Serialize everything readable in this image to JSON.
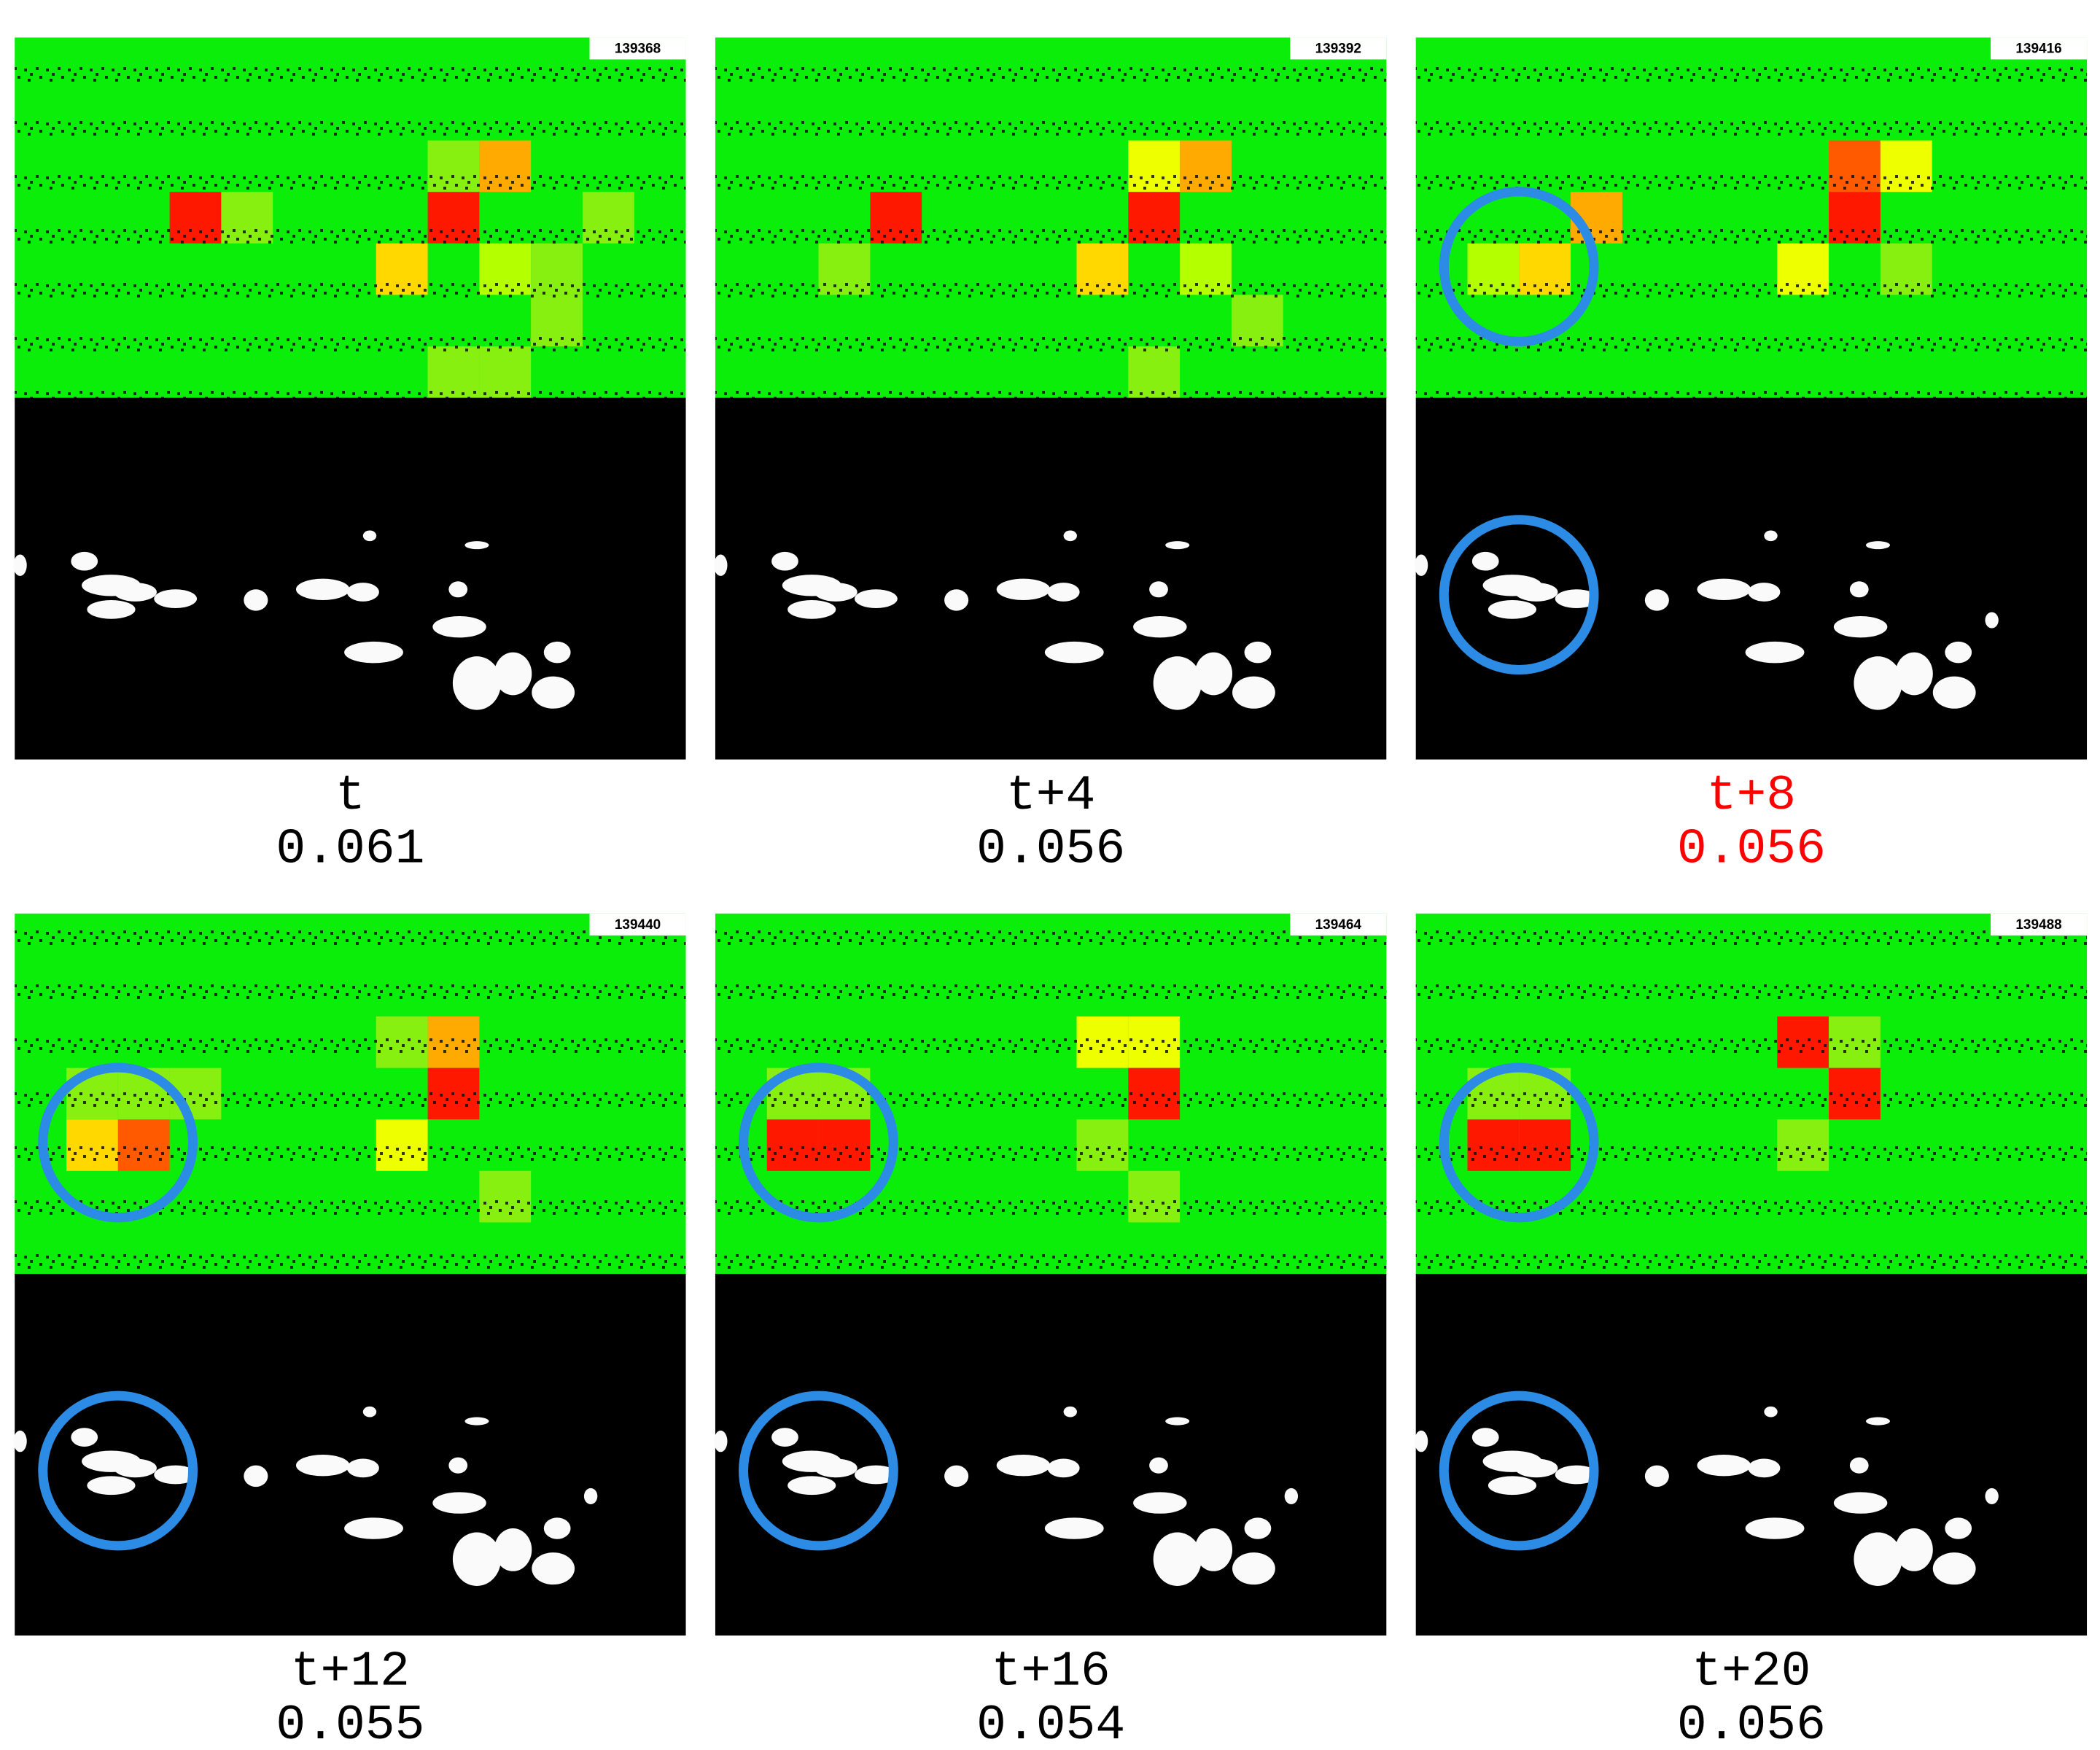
{
  "panels": [
    {
      "frame": 139368,
      "label": "t",
      "score": 0.061,
      "label_color": "#000000"
    },
    {
      "frame": 139392,
      "label": "t+4",
      "score": 0.056,
      "label_color": "#000000"
    },
    {
      "frame": 139416,
      "label": "t+8",
      "score": 0.056,
      "label_color": "#ff0000"
    },
    {
      "frame": 139440,
      "label": "t+12",
      "score": 0.055,
      "label_color": "#000000"
    },
    {
      "frame": 139464,
      "label": "t+16",
      "score": 0.054,
      "label_color": "#000000"
    },
    {
      "frame": 139488,
      "label": "t+20",
      "score": 0.056,
      "label_color": "#000000"
    }
  ]
}
